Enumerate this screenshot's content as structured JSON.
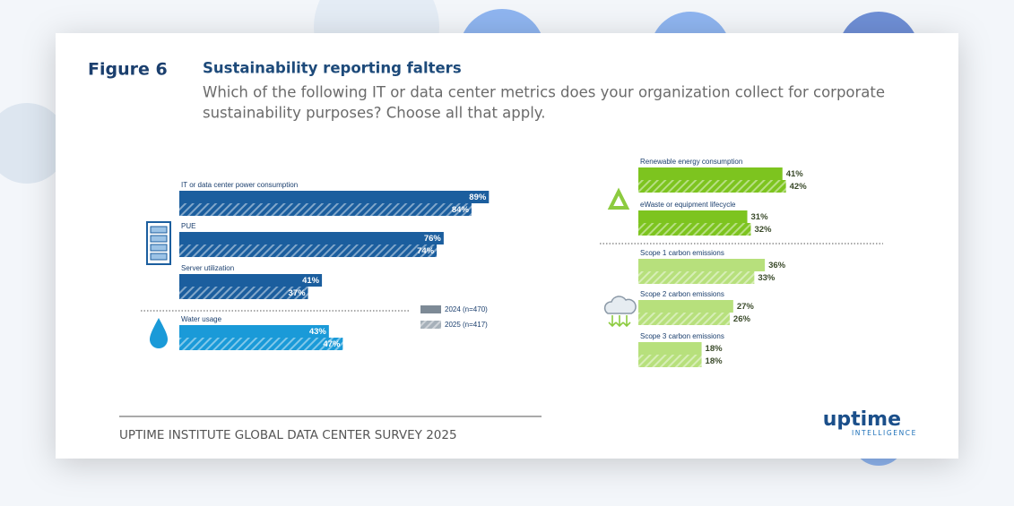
{
  "figure_label": "Figure 6",
  "title": "Sustainability reporting falters",
  "subtitle_lines": [
    "Which of the following IT or data center metrics does your organization collect for corporate",
    "sustainability purposes? Choose all that apply."
  ],
  "footer": "UPTIME INSTITUTE GLOBAL DATA CENTER SURVEY 2025",
  "logo": {
    "name": "uptime",
    "tagline": "INTELLIGENCE"
  },
  "chart_data": [
    {
      "type": "bar",
      "orientation": "horizontal",
      "categories": [
        "IT or data center power consumption",
        "PUE",
        "Server utilization",
        "Water usage"
      ],
      "category_colors": [
        "#1b5e9e",
        "#1b5e9e",
        "#1b5e9e",
        "#1a9ad8"
      ],
      "series": [
        {
          "name": "2024 (n=470)",
          "color": "#7d8a96",
          "pattern": "solid",
          "values": [
            89,
            76,
            41,
            43
          ],
          "value_labels": [
            "89%",
            "76%",
            "41%",
            "43%"
          ]
        },
        {
          "name": "2025 (n=417)",
          "color": "#a7b1ba",
          "pattern": "hatched",
          "values": [
            84,
            74,
            37,
            47
          ],
          "value_labels": [
            "84%",
            "74%",
            "37%",
            "47%"
          ]
        }
      ]
    },
    {
      "type": "bar",
      "orientation": "horizontal",
      "categories": [
        "Renewable energy consumption",
        "eWaste or equipment lifecycle",
        "Scope 1 carbon emissions",
        "Scope 2 carbon emissions",
        "Scope 3 carbon emissions"
      ],
      "category_colors": [
        "#7dc41f",
        "#7dc41f",
        "#b7e07c",
        "#b7e07c",
        "#b7e07c"
      ],
      "series": [
        {
          "pattern": "solid",
          "values": [
            41,
            31,
            36,
            27,
            18
          ],
          "value_labels": [
            "41%",
            "31%",
            "36%",
            "27%",
            "18%"
          ]
        },
        {
          "pattern": "hatched",
          "values": [
            42,
            32,
            33,
            26,
            18
          ],
          "value_labels": [
            "42%",
            "32%",
            "33%",
            "26%",
            "18%"
          ]
        }
      ]
    }
  ]
}
